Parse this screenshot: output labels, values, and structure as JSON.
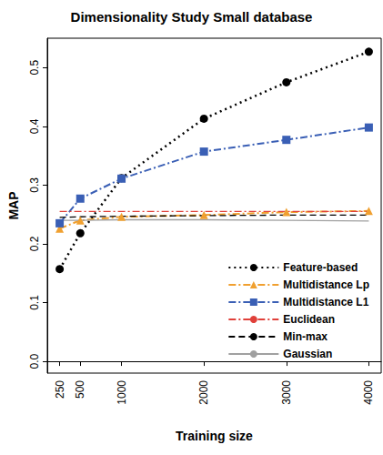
{
  "chart_data": {
    "type": "line",
    "title": "Dimensionality Study Small database",
    "x_label": "Training size",
    "y_label": "MAP",
    "x": [
      250,
      500,
      1000,
      2000,
      3000,
      4000
    ],
    "xlim": [
      100,
      4150
    ],
    "xticks": [
      250,
      500,
      1000,
      2000,
      3000,
      4000
    ],
    "ylim": [
      -0.02,
      0.55
    ],
    "yticks": [
      {
        "value": 0,
        "label": "0.0"
      },
      0.1,
      0.2,
      0.3,
      0.4,
      0.5
    ],
    "grid": false,
    "legend": "bottom-right",
    "series": [
      {
        "name": "Feature-based",
        "color": "#000000",
        "marker": "circle",
        "line_style": "dotted",
        "values": [
          0.157,
          0.218,
          0.312,
          0.413,
          0.475,
          0.527
        ]
      },
      {
        "name": "Multidistance Lp",
        "color": "#f0a030",
        "marker": "triangle",
        "line_style": "dashdot",
        "values": [
          0.226,
          0.24,
          0.246,
          0.249,
          0.254,
          0.256
        ]
      },
      {
        "name": "Multidistance L1",
        "color": "#3a5fb5",
        "marker": "square",
        "line_style": "dashdot",
        "values": [
          0.235,
          0.277,
          0.311,
          0.357,
          0.377,
          0.398
        ]
      },
      {
        "name": "Euclidean",
        "color": "#e0403a",
        "marker": "none",
        "line_style": "dashdot",
        "values": [
          0.255,
          0.255,
          0.255,
          0.255,
          0.255,
          0.255
        ]
      },
      {
        "name": "Min-max",
        "color": "#000000",
        "marker": "none",
        "line_style": "dashed",
        "values": [
          0.245,
          0.246,
          0.247,
          0.248,
          0.249,
          0.249
        ]
      },
      {
        "name": "Gaussian",
        "color": "#a0a0a0",
        "marker": "none",
        "line_style": "solid",
        "values": [
          0.24,
          0.24,
          0.241,
          0.241,
          0.24,
          0.239
        ]
      }
    ]
  }
}
